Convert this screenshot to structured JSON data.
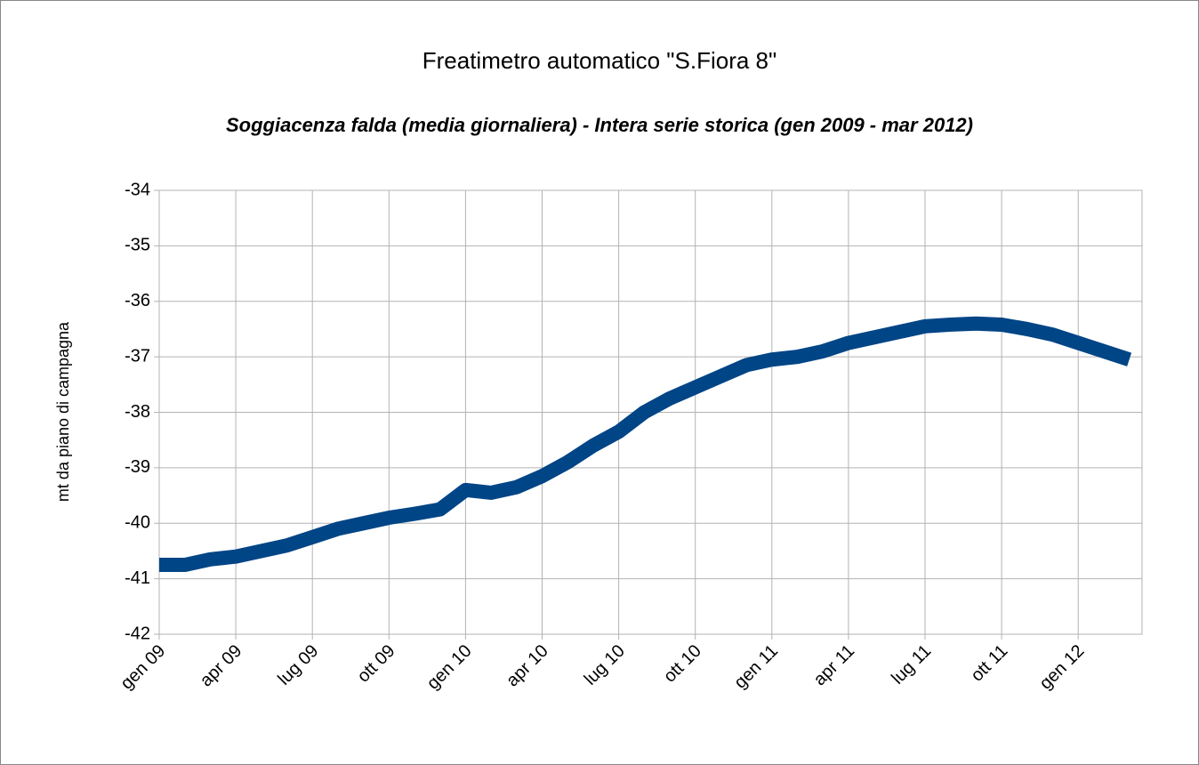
{
  "chart_data": {
    "type": "line",
    "title": "Freatimetro automatico \"S.Fiora 8\"",
    "subtitle": "Soggiacenza falda (media giornaliera) - Intera serie storica (gen 2009 - mar 2012)",
    "y_label": "mt da piano di campagna",
    "categories": [
      "gen 09",
      null,
      null,
      "apr 09",
      null,
      null,
      "lug 09",
      null,
      null,
      "ott 09",
      null,
      null,
      "gen 10",
      null,
      null,
      "apr 10",
      null,
      null,
      "lug 10",
      null,
      null,
      "ott 10",
      null,
      null,
      "gen 11",
      null,
      null,
      "apr 11",
      null,
      null,
      "lug 11",
      null,
      null,
      "ott 11",
      null,
      null,
      "gen 12",
      null,
      null
    ],
    "values": [
      -40.75,
      -40.75,
      -40.65,
      -40.6,
      -40.5,
      -40.4,
      -40.25,
      -40.1,
      -40.0,
      -39.9,
      -39.83,
      -39.75,
      -39.4,
      -39.45,
      -39.35,
      -39.15,
      -38.9,
      -38.6,
      -38.35,
      -38.0,
      -37.75,
      -37.55,
      -37.35,
      -37.15,
      -37.05,
      -37.0,
      -36.9,
      -36.75,
      -36.65,
      -36.55,
      -36.45,
      -36.42,
      -36.4,
      -36.42,
      -36.5,
      -36.6,
      -36.75,
      -36.9,
      -37.05
    ],
    "color": "#004586",
    "ylim": [
      -42,
      -34
    ],
    "yticks": [
      -42,
      -41,
      -40,
      -39,
      -38,
      -37,
      -36,
      -35,
      -34
    ],
    "grid": true
  }
}
